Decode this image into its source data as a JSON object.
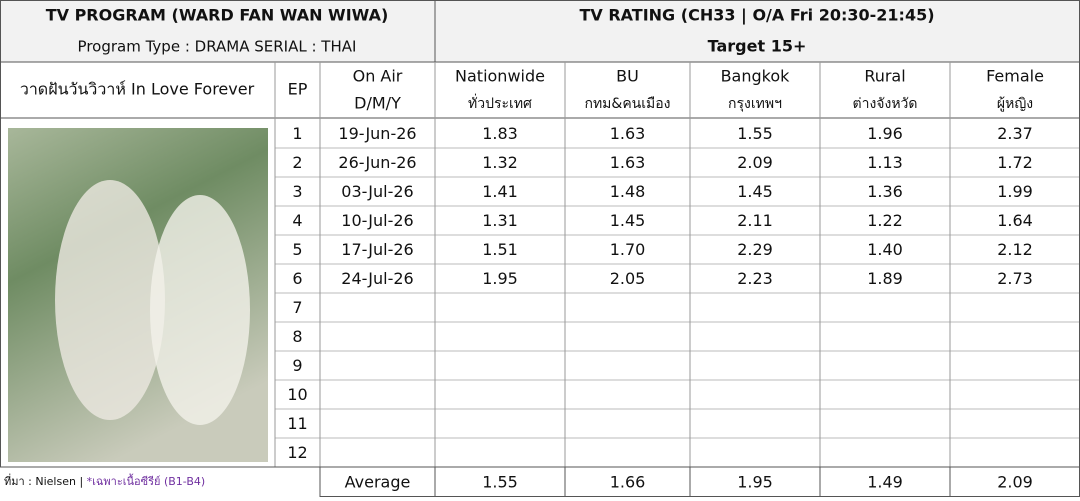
{
  "header": {
    "left_title": "TV PROGRAM (WARD FAN WAN WIWA)",
    "program_type": "Program Type : DRAMA SERIAL : THAI",
    "right_title": "TV RATING (CH33 | O/A Fri 20:30-21:45)",
    "target": "Target 15+"
  },
  "table": {
    "program_name": "วาดฝันวันวิวาห์ In Love Forever",
    "columns": [
      [
        "EP"
      ],
      [
        "On Air",
        "D/M/Y"
      ],
      [
        "Nationwide",
        "ทั่วประเทศ"
      ],
      [
        "BU",
        "กทม&คนเมือง"
      ],
      [
        "Bangkok",
        "กรุงเทพฯ"
      ],
      [
        "Rural",
        "ต่างจังหวัด"
      ],
      [
        "Female",
        "ผู้หญิง"
      ]
    ],
    "rows": [
      [
        "1",
        "19-Jun-26",
        "1.83",
        "1.63",
        "1.55",
        "1.96",
        "2.37"
      ],
      [
        "2",
        "26-Jun-26",
        "1.32",
        "1.63",
        "2.09",
        "1.13",
        "1.72"
      ],
      [
        "3",
        "03-Jul-26",
        "1.41",
        "1.48",
        "1.45",
        "1.36",
        "1.99"
      ],
      [
        "4",
        "10-Jul-26",
        "1.31",
        "1.45",
        "2.11",
        "1.22",
        "1.64"
      ],
      [
        "5",
        "17-Jul-26",
        "1.51",
        "1.70",
        "2.29",
        "1.40",
        "2.12"
      ],
      [
        "6",
        "24-Jul-26",
        "1.95",
        "2.05",
        "2.23",
        "1.89",
        "2.73"
      ],
      [
        "7"
      ],
      [
        "8"
      ],
      [
        "9"
      ],
      [
        "10"
      ],
      [
        "11"
      ],
      [
        "12"
      ]
    ],
    "average": {
      "label": "Average",
      "values": [
        "1.55",
        "1.66",
        "1.95",
        "1.49",
        "2.09"
      ]
    }
  },
  "footer": {
    "source": "ที่มา : Nielsen |",
    "note": "*เฉพาะเนื้อซีรีย์ (B1-B4)"
  }
}
